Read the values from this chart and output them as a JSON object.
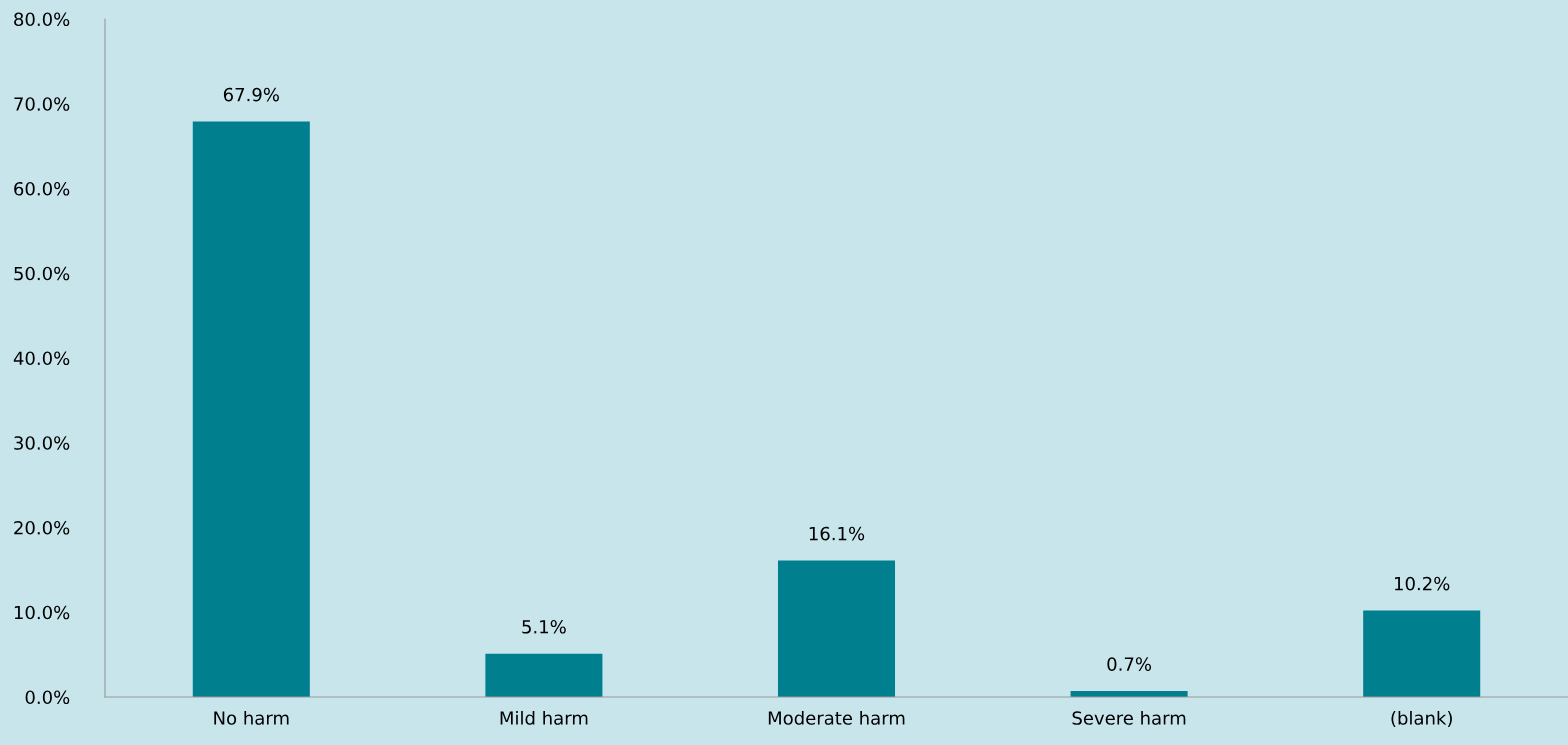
{
  "chart_data": {
    "type": "bar",
    "categories": [
      "No harm",
      "Mild harm",
      "Moderate harm",
      "Severe harm",
      "(blank)"
    ],
    "values": [
      67.9,
      5.1,
      16.1,
      0.7,
      10.2
    ],
    "value_labels": [
      "67.9%",
      "5.1%",
      "16.1%",
      "0.7%",
      "10.2%"
    ],
    "color": "#007f8f",
    "ylim": [
      0,
      80
    ],
    "yticks": [
      {
        "value": 0,
        "label": "0.0%"
      },
      {
        "value": 10,
        "label": "10.0%"
      },
      {
        "value": 20,
        "label": "20.0%"
      },
      {
        "value": 30,
        "label": "30.0%"
      },
      {
        "value": 40,
        "label": "40.0%"
      },
      {
        "value": 50,
        "label": "50.0%"
      },
      {
        "value": 60,
        "label": "60.0%"
      },
      {
        "value": 70,
        "label": "70.0%"
      },
      {
        "value": 80,
        "label": "80.0%"
      }
    ],
    "grid": false,
    "legend": false
  }
}
